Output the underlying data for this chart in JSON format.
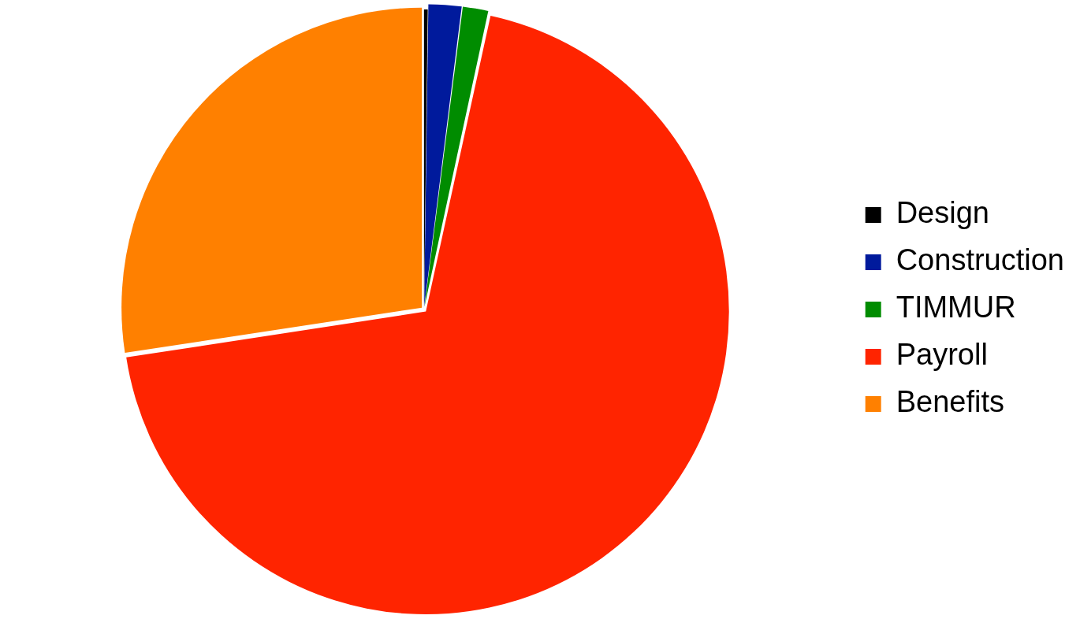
{
  "chart_data": {
    "type": "pie",
    "categories": [
      "Design",
      "Construction",
      "TIMMUR",
      "Payroll",
      "Benefits"
    ],
    "values": [
      0.2,
      1.8,
      1.4,
      69.2,
      27.4
    ],
    "colors": [
      "#000000",
      "#001a9c",
      "#008c00",
      "#ff2400",
      "#ff8000"
    ],
    "legend": "right"
  }
}
